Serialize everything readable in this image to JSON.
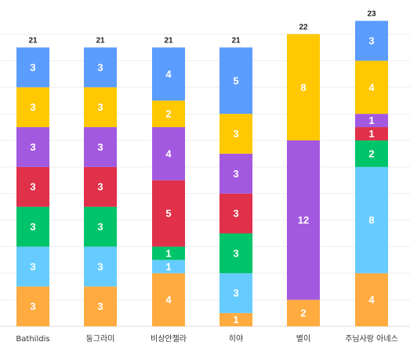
{
  "chart_data": {
    "type": "bar",
    "stacked": true,
    "categories": [
      "Bathildis",
      "둥그라미",
      "비상안젤라",
      "히야",
      "별이",
      "주님사랑 아네스"
    ],
    "totals": [
      21,
      21,
      21,
      21,
      22,
      23
    ],
    "ylim": [
      0,
      23
    ],
    "grid": true,
    "series": [
      {
        "color": "#ffab40",
        "values": [
          3,
          3,
          4,
          1,
          2,
          4
        ]
      },
      {
        "color": "#66ccff",
        "values": [
          3,
          3,
          1,
          3,
          0,
          8
        ]
      },
      {
        "color": "#00c46a",
        "values": [
          3,
          3,
          1,
          3,
          0,
          2
        ]
      },
      {
        "color": "#e0304a",
        "values": [
          3,
          3,
          5,
          3,
          0,
          1
        ]
      },
      {
        "color": "#a259e0",
        "values": [
          3,
          3,
          4,
          3,
          12,
          1
        ]
      },
      {
        "color": "#ffc800",
        "values": [
          3,
          3,
          2,
          3,
          8,
          4
        ]
      },
      {
        "color": "#5b9cff",
        "values": [
          3,
          3,
          4,
          5,
          0,
          3
        ]
      }
    ]
  }
}
